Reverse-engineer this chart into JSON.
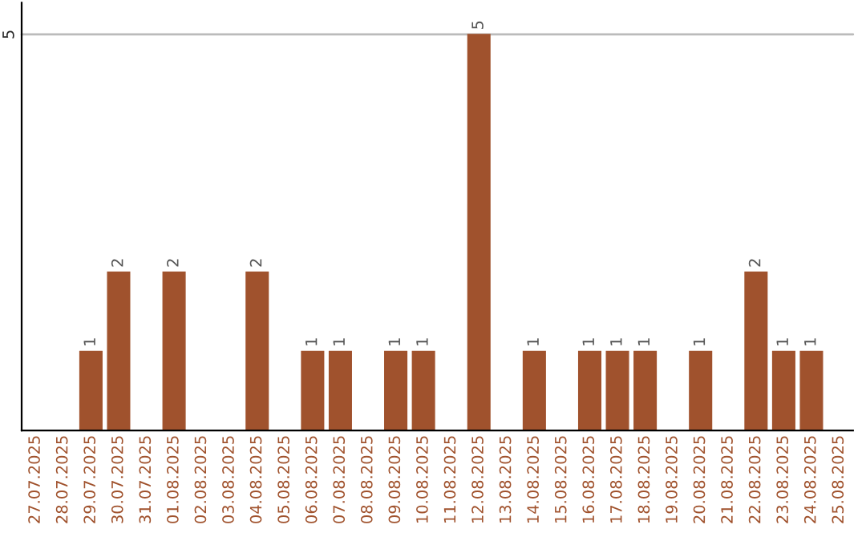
{
  "chart_data": {
    "type": "bar",
    "categories": [
      "27.07.2025",
      "28.07.2025",
      "29.07.2025",
      "30.07.2025",
      "31.07.2025",
      "01.08.2025",
      "02.08.2025",
      "03.08.2025",
      "04.08.2025",
      "05.08.2025",
      "06.08.2025",
      "07.08.2025",
      "08.08.2025",
      "09.08.2025",
      "10.08.2025",
      "11.08.2025",
      "12.08.2025",
      "13.08.2025",
      "14.08.2025",
      "15.08.2025",
      "16.08.2025",
      "17.08.2025",
      "18.08.2025",
      "19.08.2025",
      "20.08.2025",
      "21.08.2025",
      "22.08.2025",
      "23.08.2025",
      "24.08.2025",
      "25.08.2025"
    ],
    "values": [
      0,
      0,
      1,
      2,
      0,
      2,
      0,
      0,
      2,
      0,
      1,
      1,
      0,
      1,
      1,
      0,
      5,
      0,
      1,
      0,
      1,
      1,
      1,
      0,
      1,
      0,
      2,
      1,
      1,
      0
    ],
    "value_labels": [
      null,
      null,
      "1",
      "2",
      null,
      "2",
      null,
      null,
      "2",
      null,
      "1",
      "1",
      null,
      "1",
      "1",
      null,
      "5",
      null,
      "1",
      null,
      "1",
      "1",
      "1",
      null,
      "1",
      null,
      "2",
      "1",
      "1",
      null
    ],
    "color": "#a0522d",
    "ylim": [
      0,
      5.4
    ],
    "yticks": [
      5
    ],
    "grid": "y"
  }
}
